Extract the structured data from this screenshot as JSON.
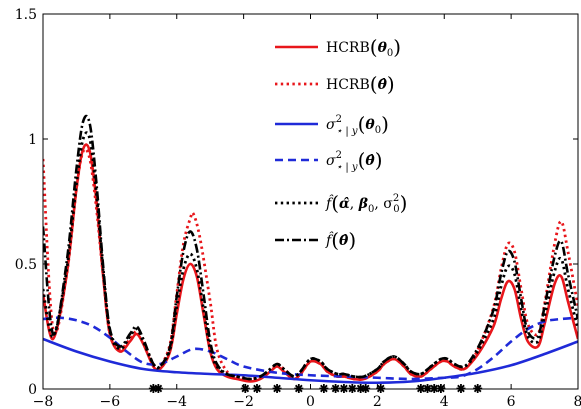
{
  "chart_data": {
    "type": "line",
    "xlim": [
      -8,
      8
    ],
    "ylim": [
      0,
      1.5
    ],
    "x_ticks": [
      -8,
      -6,
      -4,
      -2,
      0,
      2,
      4,
      6,
      8
    ],
    "y_ticks": [
      0,
      0.5,
      1,
      1.5
    ],
    "x_tick_labels": [
      "−8",
      "−6",
      "−4",
      "−2",
      "0",
      "2",
      "4",
      "6",
      "8"
    ],
    "y_tick_labels": [
      "0",
      "0.5",
      "1",
      "1.5"
    ],
    "legend_placement": "top-right",
    "grid": false,
    "observations_x": [
      -4.7,
      -4.55,
      -1.95,
      -1.6,
      -1.0,
      -0.35,
      0.4,
      0.75,
      1.0,
      1.25,
      1.5,
      1.65,
      2.1,
      3.3,
      3.5,
      3.7,
      3.9,
      4.5,
      5.0
    ],
    "series": [
      {
        "name": "HCRB(θ0)",
        "style": "solid",
        "color": "#e8161b",
        "width": 2.6,
        "x": [
          -8,
          -7.7,
          -7.3,
          -7.0,
          -6.8,
          -6.6,
          -6.4,
          -6.2,
          -6.0,
          -5.7,
          -5.4,
          -5.2,
          -5.0,
          -4.7,
          -4.5,
          -4.2,
          -4.0,
          -3.8,
          -3.6,
          -3.4,
          -3.2,
          -3.0,
          -2.8,
          -2.5,
          -2.2,
          -1.8,
          -1.5,
          -1.2,
          -1.0,
          -0.8,
          -0.5,
          -0.3,
          0,
          0.3,
          0.5,
          0.8,
          1.0,
          1.3,
          1.6,
          2.0,
          2.2,
          2.5,
          2.8,
          3.0,
          3.3,
          3.6,
          3.9,
          4.1,
          4.3,
          4.6,
          4.9,
          5.2,
          5.5,
          5.7,
          5.9,
          6.1,
          6.3,
          6.5,
          6.8,
          7.0,
          7.3,
          7.5,
          7.7,
          8.0
        ],
        "y": [
          0.38,
          0.2,
          0.45,
          0.8,
          0.96,
          0.95,
          0.75,
          0.45,
          0.22,
          0.15,
          0.19,
          0.22,
          0.18,
          0.09,
          0.08,
          0.15,
          0.3,
          0.44,
          0.5,
          0.45,
          0.3,
          0.15,
          0.08,
          0.05,
          0.04,
          0.03,
          0.04,
          0.07,
          0.09,
          0.07,
          0.04,
          0.06,
          0.11,
          0.1,
          0.07,
          0.05,
          0.05,
          0.04,
          0.04,
          0.07,
          0.1,
          0.12,
          0.09,
          0.06,
          0.05,
          0.08,
          0.11,
          0.11,
          0.09,
          0.08,
          0.12,
          0.18,
          0.26,
          0.36,
          0.43,
          0.4,
          0.28,
          0.19,
          0.17,
          0.26,
          0.42,
          0.45,
          0.35,
          0.2
        ]
      },
      {
        "name": "HCRB(θ̂)",
        "style": "dotted",
        "color": "#e8161b",
        "width": 2.8,
        "x": [
          -8,
          -7.7,
          -7.3,
          -7.0,
          -6.8,
          -6.6,
          -6.4,
          -6.2,
          -6.0,
          -5.7,
          -5.4,
          -5.2,
          -5.0,
          -4.7,
          -4.5,
          -4.2,
          -4.0,
          -3.8,
          -3.6,
          -3.5,
          -3.3,
          -3.0,
          -2.8,
          -2.5,
          -2.2,
          -1.8,
          -1.5,
          -1.2,
          -1.0,
          -0.8,
          -0.5,
          -0.3,
          0,
          0.3,
          0.5,
          0.8,
          1.0,
          1.3,
          1.6,
          2.0,
          2.2,
          2.5,
          2.8,
          3.0,
          3.3,
          3.6,
          3.9,
          4.1,
          4.3,
          4.6,
          4.9,
          5.2,
          5.5,
          5.7,
          5.9,
          6.1,
          6.3,
          6.5,
          6.8,
          7.0,
          7.3,
          7.5,
          7.7,
          8.0
        ],
        "y": [
          0.92,
          0.24,
          0.45,
          0.8,
          0.95,
          0.92,
          0.72,
          0.45,
          0.22,
          0.16,
          0.2,
          0.23,
          0.19,
          0.1,
          0.09,
          0.18,
          0.38,
          0.58,
          0.68,
          0.7,
          0.6,
          0.35,
          0.16,
          0.07,
          0.05,
          0.04,
          0.05,
          0.07,
          0.1,
          0.08,
          0.05,
          0.06,
          0.11,
          0.1,
          0.07,
          0.05,
          0.05,
          0.04,
          0.04,
          0.07,
          0.1,
          0.12,
          0.09,
          0.06,
          0.05,
          0.08,
          0.11,
          0.11,
          0.09,
          0.08,
          0.13,
          0.22,
          0.34,
          0.48,
          0.58,
          0.55,
          0.4,
          0.26,
          0.22,
          0.34,
          0.58,
          0.67,
          0.55,
          0.33
        ]
      },
      {
        "name": "σ²⋆|y(θ0)",
        "style": "solid",
        "color": "#1f2ad8",
        "width": 2.6,
        "x": [
          -8,
          -7,
          -6,
          -5,
          -4,
          -3,
          -2,
          -1,
          0,
          1,
          2,
          3,
          4,
          5,
          6,
          7,
          8
        ],
        "y": [
          0.2,
          0.15,
          0.11,
          0.08,
          0.067,
          0.06,
          0.055,
          0.045,
          0.035,
          0.028,
          0.025,
          0.03,
          0.045,
          0.065,
          0.095,
          0.14,
          0.19
        ]
      },
      {
        "name": "σ²⋆|y(θ̂)",
        "style": "dashed",
        "color": "#1f2ad8",
        "width": 2.6,
        "x": [
          -8,
          -7.5,
          -7,
          -6.5,
          -6,
          -5.5,
          -5,
          -4.5,
          -4,
          -3.5,
          -3,
          -2.5,
          -2,
          -1,
          0,
          1,
          2,
          3,
          4,
          4.5,
          5,
          5.5,
          6,
          6.5,
          7,
          7.5,
          8
        ],
        "y": [
          0.28,
          0.285,
          0.275,
          0.25,
          0.205,
          0.15,
          0.105,
          0.1,
          0.13,
          0.16,
          0.15,
          0.12,
          0.09,
          0.065,
          0.055,
          0.05,
          0.045,
          0.04,
          0.045,
          0.05,
          0.08,
          0.13,
          0.19,
          0.24,
          0.27,
          0.28,
          0.285
        ]
      },
      {
        "name": "f̂(α̂, β0, σ0²)",
        "style": "dotted",
        "color": "#000000",
        "width": 2.8,
        "x": [
          -8,
          -7.7,
          -7.3,
          -7.0,
          -6.8,
          -6.6,
          -6.4,
          -6.2,
          -6.0,
          -5.7,
          -5.4,
          -5.2,
          -5.0,
          -4.7,
          -4.5,
          -4.2,
          -4.0,
          -3.8,
          -3.6,
          -3.4,
          -3.2,
          -3.0,
          -2.8,
          -2.5,
          -2.2,
          -1.8,
          -1.5,
          -1.2,
          -1.0,
          -0.8,
          -0.5,
          -0.3,
          0,
          0.3,
          0.5,
          0.8,
          1.0,
          1.3,
          1.6,
          2.0,
          2.2,
          2.5,
          2.8,
          3.0,
          3.3,
          3.6,
          3.9,
          4.1,
          4.3,
          4.6,
          4.9,
          5.2,
          5.5,
          5.7,
          5.9,
          6.1,
          6.3,
          6.5,
          6.8,
          7.0,
          7.3,
          7.5,
          7.7,
          8.0
        ],
        "y": [
          0.4,
          0.21,
          0.47,
          0.82,
          1.0,
          1.0,
          0.78,
          0.47,
          0.23,
          0.16,
          0.21,
          0.24,
          0.19,
          0.1,
          0.09,
          0.16,
          0.33,
          0.48,
          0.54,
          0.48,
          0.32,
          0.16,
          0.09,
          0.06,
          0.05,
          0.04,
          0.05,
          0.08,
          0.1,
          0.08,
          0.05,
          0.07,
          0.12,
          0.11,
          0.08,
          0.06,
          0.06,
          0.05,
          0.05,
          0.08,
          0.11,
          0.13,
          0.1,
          0.07,
          0.06,
          0.09,
          0.12,
          0.12,
          0.1,
          0.09,
          0.13,
          0.2,
          0.29,
          0.41,
          0.49,
          0.46,
          0.32,
          0.21,
          0.19,
          0.29,
          0.47,
          0.52,
          0.4,
          0.24
        ]
      },
      {
        "name": "f̂(θ̂)",
        "style": "dashdot",
        "color": "#000000",
        "width": 2.6,
        "x": [
          -8,
          -7.7,
          -7.3,
          -7.0,
          -6.8,
          -6.6,
          -6.4,
          -6.2,
          -6.0,
          -5.7,
          -5.4,
          -5.2,
          -5.0,
          -4.7,
          -4.5,
          -4.2,
          -4.0,
          -3.8,
          -3.6,
          -3.4,
          -3.2,
          -3.0,
          -2.8,
          -2.5,
          -2.2,
          -1.8,
          -1.5,
          -1.2,
          -1.0,
          -0.8,
          -0.5,
          -0.3,
          0,
          0.3,
          0.5,
          0.8,
          1.0,
          1.3,
          1.6,
          2.0,
          2.2,
          2.5,
          2.8,
          3.0,
          3.3,
          3.6,
          3.9,
          4.1,
          4.3,
          4.6,
          4.9,
          5.2,
          5.5,
          5.7,
          5.9,
          6.1,
          6.3,
          6.5,
          6.8,
          7.0,
          7.3,
          7.5,
          7.7,
          8.0
        ],
        "y": [
          0.65,
          0.22,
          0.5,
          0.88,
          1.07,
          1.06,
          0.82,
          0.49,
          0.24,
          0.17,
          0.22,
          0.25,
          0.2,
          0.1,
          0.09,
          0.17,
          0.37,
          0.55,
          0.63,
          0.56,
          0.38,
          0.19,
          0.1,
          0.06,
          0.05,
          0.04,
          0.05,
          0.08,
          0.1,
          0.08,
          0.05,
          0.07,
          0.12,
          0.11,
          0.08,
          0.06,
          0.06,
          0.05,
          0.05,
          0.08,
          0.11,
          0.13,
          0.1,
          0.07,
          0.06,
          0.09,
          0.12,
          0.12,
          0.1,
          0.09,
          0.14,
          0.22,
          0.33,
          0.46,
          0.55,
          0.51,
          0.36,
          0.23,
          0.21,
          0.33,
          0.53,
          0.59,
          0.46,
          0.28
        ]
      }
    ]
  }
}
